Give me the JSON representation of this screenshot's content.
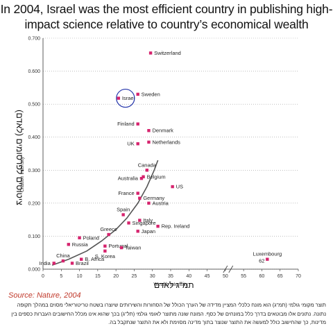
{
  "title": "In 2004, Israel was the most efficient country in publishing high-impact science relative to country’s economical wealth",
  "source": "Source: Nature, 2004",
  "hebrew_x_label": "תמ\"ג לאדם",
  "hebrew_y_label": "ציטוטים לפרסומים (לאדם)",
  "footnote": "תוצר מקומי גולמי (תמ\"ג) הוא מונח כלכלי המציין מדידה של הערך הכולל של הסחורות והשירותים שיוצרו בשטח טריטוריאלי מסוים במהלך תקופה נתונה. נתונים אלו מבוטאים בדרך כלל במונחים של כסף. המונח שונה מתוצר לאומי גולמי (תל\"ג) בכך שהוא אינו מכלל החישובים העברות כספים בין מדינות, כך שהחישוב כולל למעשה את התוצר שנוצר בתוך מדינה מסוימת ולא את התוצר שנתקבל בה.",
  "colors": {
    "marker": "#d6246e",
    "curve": "#555555",
    "highlight": "#2233aa"
  },
  "chart_data": {
    "type": "scatter",
    "xlabel": "Wealth intensity",
    "ylabel": "Citation intensity",
    "xlim": [
      0,
      70
    ],
    "ylim": [
      0,
      0.7
    ],
    "x_ticks": [
      "0",
      "5",
      "10",
      "15",
      "20",
      "25",
      "30",
      "35",
      "40",
      "45",
      "50",
      "55",
      "60",
      "65",
      "70"
    ],
    "y_ticks": [
      "0.000",
      "0.100",
      "0.200",
      "0.300",
      "0.400",
      "0.500",
      "0.600",
      "0.700"
    ],
    "points": [
      {
        "name": "Switzerland",
        "x": 29.5,
        "y": 0.655,
        "anchor": "right"
      },
      {
        "name": "Israel",
        "x": 20.7,
        "y": 0.518,
        "anchor": "right",
        "highlight": true
      },
      {
        "name": "Sweden",
        "x": 26.0,
        "y": 0.53,
        "anchor": "right"
      },
      {
        "name": "Finland",
        "x": 26.0,
        "y": 0.44,
        "anchor": "left"
      },
      {
        "name": "Denmark",
        "x": 29.0,
        "y": 0.42,
        "anchor": "right"
      },
      {
        "name": "UK",
        "x": 26.0,
        "y": 0.38,
        "anchor": "left"
      },
      {
        "name": "Netherlands",
        "x": 29.0,
        "y": 0.385,
        "anchor": "right"
      },
      {
        "name": "Canada",
        "x": 28.5,
        "y": 0.3,
        "anchor": "above"
      },
      {
        "name": "Belgium",
        "x": 27.5,
        "y": 0.28,
        "anchor": "right"
      },
      {
        "name": "Australia",
        "x": 27.0,
        "y": 0.275,
        "anchor": "left"
      },
      {
        "name": "US",
        "x": 35.5,
        "y": 0.25,
        "anchor": "right"
      },
      {
        "name": "France",
        "x": 26.0,
        "y": 0.23,
        "anchor": "left"
      },
      {
        "name": "Germany",
        "x": 26.5,
        "y": 0.215,
        "anchor": "right"
      },
      {
        "name": "Austria",
        "x": 29.0,
        "y": 0.2,
        "anchor": "right"
      },
      {
        "name": "Spain",
        "x": 22.0,
        "y": 0.165,
        "anchor": "above"
      },
      {
        "name": "Italy",
        "x": 26.5,
        "y": 0.148,
        "anchor": "right"
      },
      {
        "name": "Singapore",
        "x": 23.5,
        "y": 0.14,
        "anchor": "right"
      },
      {
        "name": "Japan",
        "x": 26.0,
        "y": 0.115,
        "anchor": "right"
      },
      {
        "name": "Rep. Ireland",
        "x": 31.5,
        "y": 0.13,
        "anchor": "right"
      },
      {
        "name": "Greece",
        "x": 18.0,
        "y": 0.105,
        "anchor": "above"
      },
      {
        "name": "Poland",
        "x": 10.0,
        "y": 0.095,
        "anchor": "right"
      },
      {
        "name": "Russia",
        "x": 7.0,
        "y": 0.075,
        "anchor": "right"
      },
      {
        "name": "Portugal",
        "x": 17.0,
        "y": 0.07,
        "anchor": "right"
      },
      {
        "name": "Taiwan",
        "x": 21.5,
        "y": 0.065,
        "anchor": "right"
      },
      {
        "name": "S. Korea",
        "x": 17.0,
        "y": 0.055,
        "anchor": "below"
      },
      {
        "name": "Luxembourg",
        "x": 61.5,
        "y": 0.03,
        "anchor": "above"
      },
      {
        "name": "B. Africa",
        "x": 10.5,
        "y": 0.03,
        "anchor": "right"
      },
      {
        "name": "China",
        "x": 5.5,
        "y": 0.025,
        "anchor": "above"
      },
      {
        "name": "India",
        "x": 3.0,
        "y": 0.018,
        "anchor": "left"
      },
      {
        "name": "Brazil",
        "x": 8.0,
        "y": 0.018,
        "anchor": "right"
      }
    ],
    "extra_labels": [
      "62"
    ],
    "trend_curve": [
      [
        2.5,
        0.012
      ],
      [
        7,
        0.03
      ],
      [
        12,
        0.055
      ],
      [
        16,
        0.085
      ],
      [
        20,
        0.12
      ],
      [
        23,
        0.155
      ],
      [
        26,
        0.2
      ],
      [
        28.5,
        0.25
      ],
      [
        30.5,
        0.3
      ],
      [
        31.5,
        0.33
      ]
    ]
  }
}
